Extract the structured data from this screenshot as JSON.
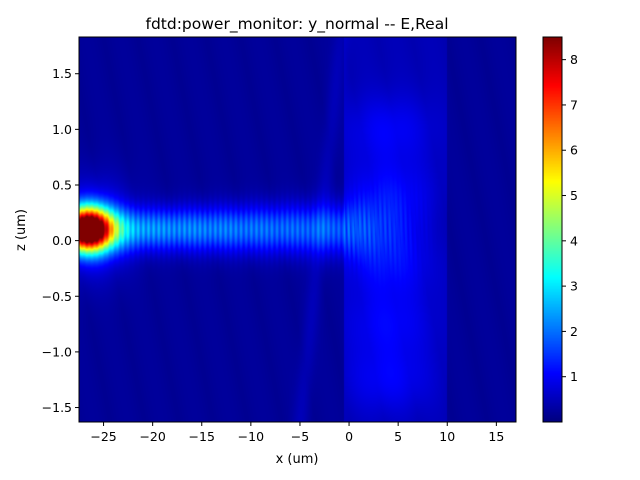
{
  "chart_data": {
    "type": "heatmap",
    "title": "fdtd:power_monitor: y_normal -- E,Real",
    "xlabel": "x (um)",
    "ylabel": "z (um)",
    "xlim": [
      -27.5,
      17.0
    ],
    "ylim": [
      -1.63,
      1.83
    ],
    "x_ticks": [
      -25,
      -20,
      -15,
      -10,
      -5,
      0,
      5,
      10,
      15
    ],
    "x_tick_labels": [
      "−25",
      "−20",
      "−15",
      "−10",
      "−5",
      "0",
      "5",
      "10",
      "15"
    ],
    "y_ticks": [
      -1.5,
      -1.0,
      -0.5,
      0.0,
      0.5,
      1.0,
      1.5
    ],
    "y_tick_labels": [
      "−1.5",
      "−1.0",
      "−0.5",
      "0.0",
      "0.5",
      "1.0",
      "1.5"
    ],
    "colorbar": {
      "colormap": "jet",
      "range": [
        0.0,
        8.5
      ],
      "ticks": [
        1,
        2,
        3,
        4,
        5,
        6,
        7,
        8
      ],
      "tick_labels": [
        "1",
        "2",
        "3",
        "4",
        "5",
        "6",
        "7",
        "8"
      ]
    },
    "features": {
      "source_peak": {
        "x": -26.5,
        "z": 0.1,
        "value": 8.4
      },
      "beam_center_z": 0.1,
      "beam_end_x": 9.0,
      "interface_x": -0.5
    },
    "grid": false
  }
}
